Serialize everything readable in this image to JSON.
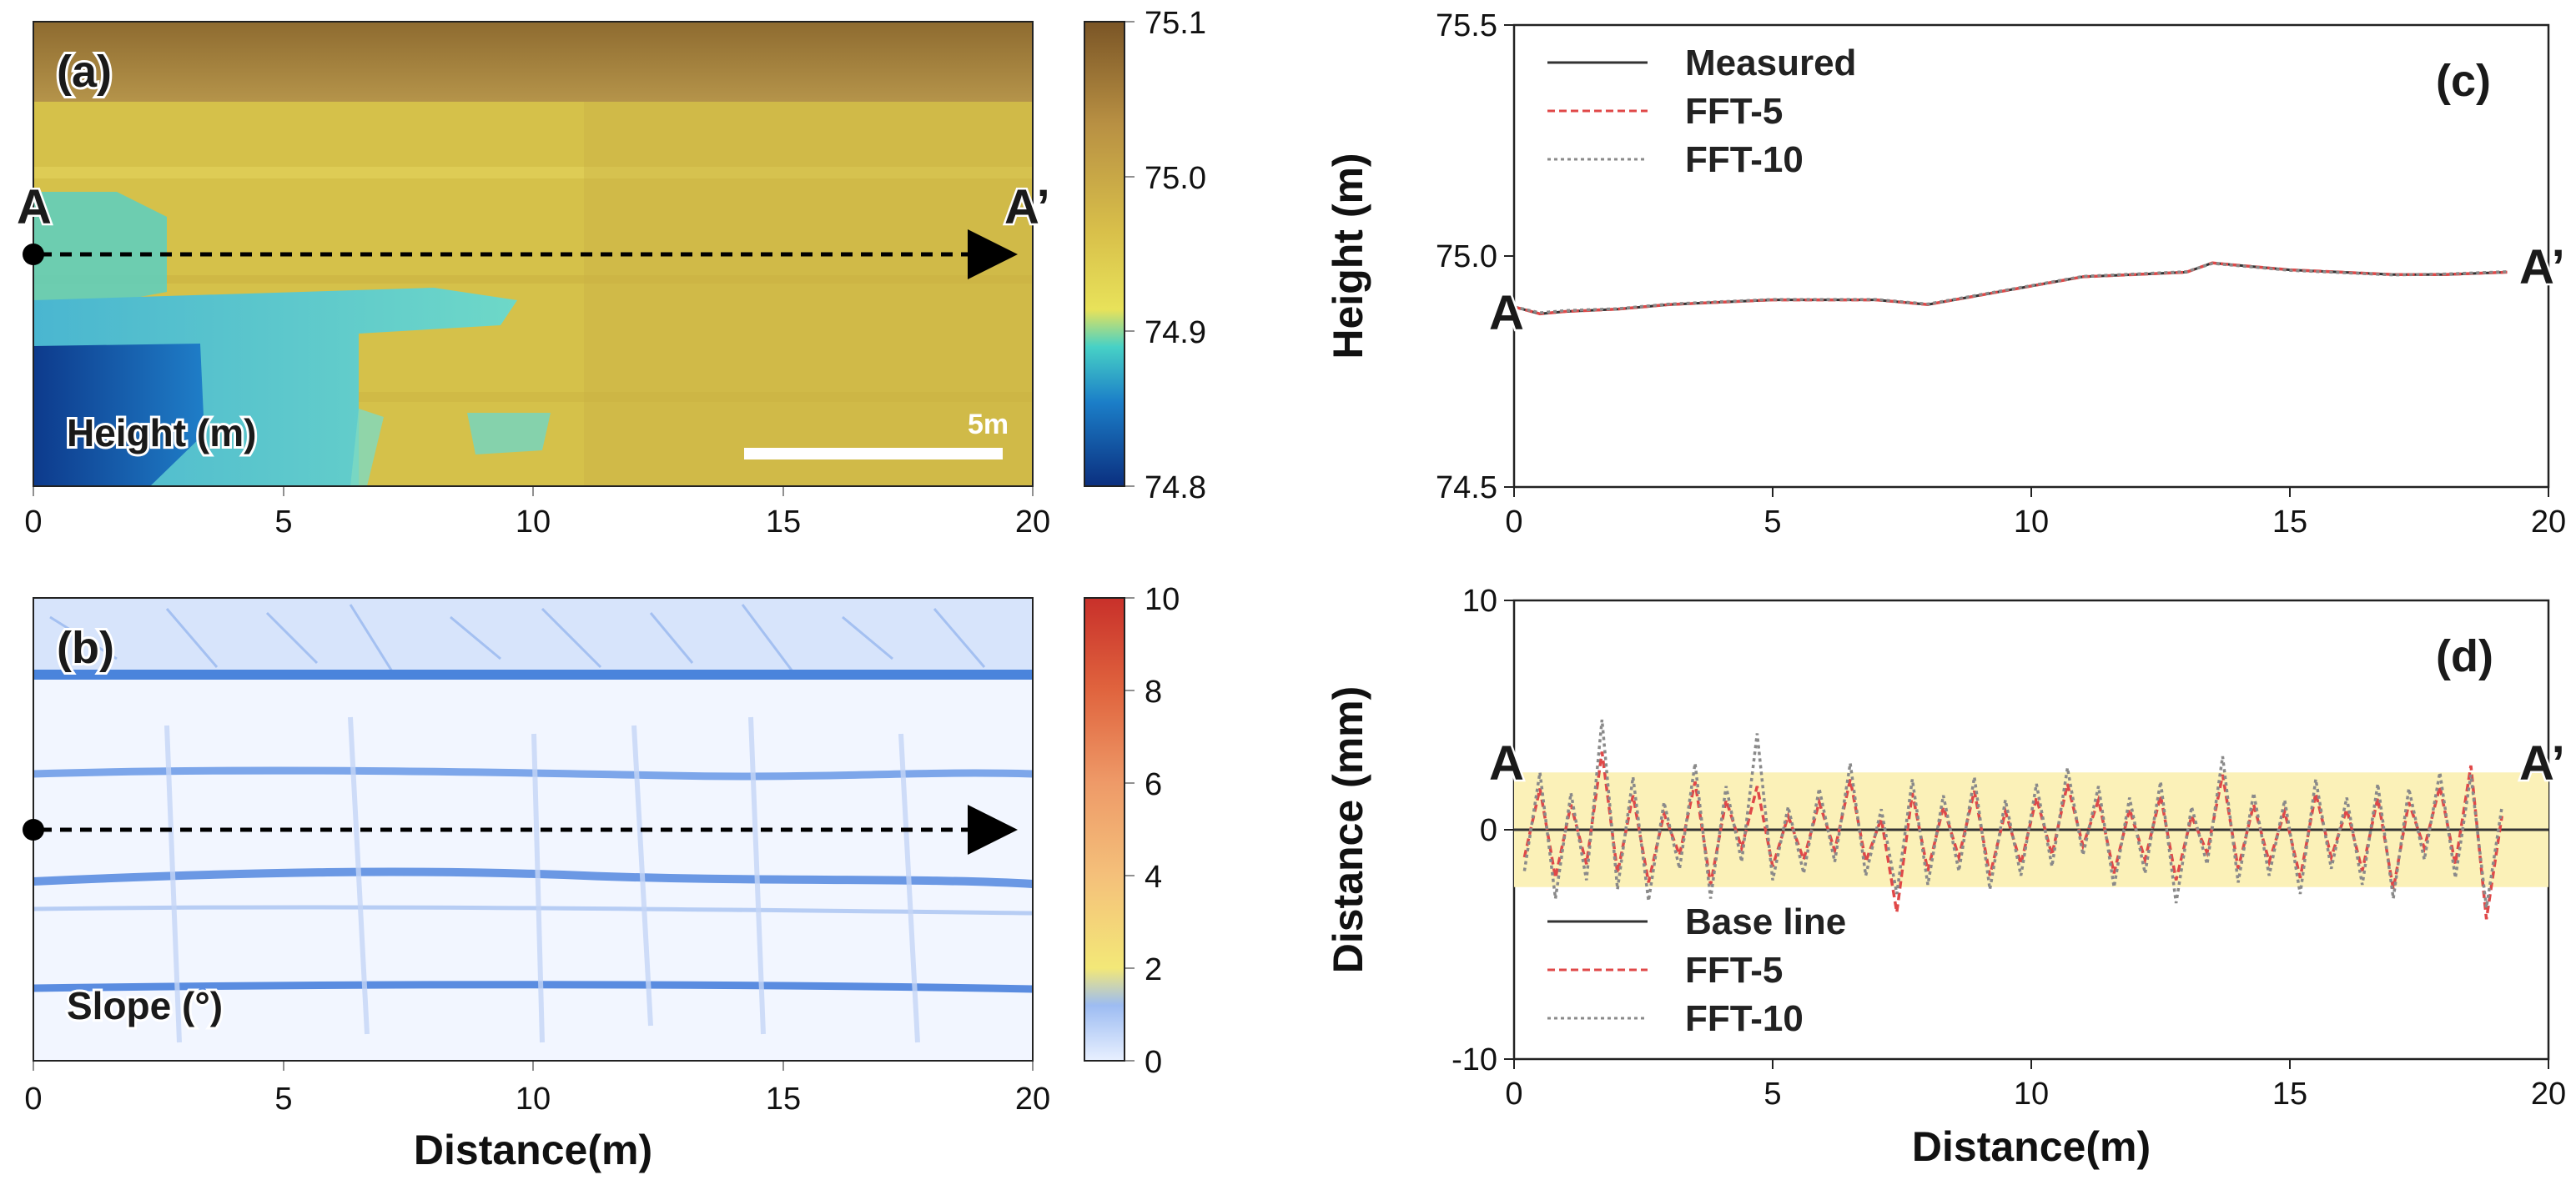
{
  "panels": {
    "a": {
      "label": "(a)",
      "title": "Height (m)",
      "x_ticks": [
        "0",
        "5",
        "10",
        "15",
        "20"
      ],
      "colorbar_ticks": [
        "75.1",
        "75.0",
        "74.9",
        "74.8"
      ],
      "colorbar_range": [
        74.8,
        75.1
      ],
      "scale_bar": "5m",
      "start_marker": "A",
      "end_marker": "A’",
      "colors": {
        "high": "#8a6a2e",
        "mid": "#d8c24a",
        "low": "#0a3a8a",
        "cyan": "#5ad0c0"
      }
    },
    "b": {
      "label": "(b)",
      "title": "Slope (°)",
      "x_ticks": [
        "0",
        "5",
        "10",
        "15",
        "20"
      ],
      "xlabel": "Distance(m)",
      "colorbar_ticks": [
        "10",
        "8",
        "6",
        "4",
        "2",
        "0"
      ],
      "colorbar_range": [
        0,
        10
      ],
      "colors": {
        "low": "#e8f0ff",
        "band": "#3a78d8",
        "high": "#d8402a"
      }
    },
    "c": {
      "label": "(c)",
      "start_marker": "A",
      "end_marker": "A’"
    },
    "d": {
      "label": "(d)",
      "start_marker": "A",
      "end_marker": "A’"
    }
  },
  "chart_data": [
    {
      "type": "line",
      "panel": "c",
      "title": "",
      "xlabel": "",
      "ylabel": "Height (m)",
      "xlim": [
        0,
        20
      ],
      "ylim": [
        74.5,
        75.5
      ],
      "x_ticks": [
        0,
        5,
        10,
        15,
        20
      ],
      "y_ticks": [
        74.5,
        75.0,
        75.5
      ],
      "x_tick_labels": [
        "0",
        "5",
        "10",
        "15",
        "20"
      ],
      "y_tick_labels": [
        "74.5",
        "75.0",
        "75.5"
      ],
      "legend_position": "top-left",
      "series": [
        {
          "name": "Measured",
          "color": "#333333",
          "style": "solid",
          "x": [
            0,
            0.5,
            1,
            2,
            3,
            4,
            5,
            6,
            7,
            8,
            9,
            10,
            11,
            12,
            13,
            13.5,
            14,
            15,
            16,
            17,
            18,
            19.2
          ],
          "y": [
            74.89,
            74.875,
            74.88,
            74.885,
            74.895,
            74.9,
            74.905,
            74.905,
            74.905,
            74.895,
            74.915,
            74.935,
            74.955,
            74.96,
            74.965,
            74.985,
            74.98,
            74.97,
            74.965,
            74.96,
            74.96,
            74.965
          ]
        },
        {
          "name": "FFT-5",
          "color": "#e04848",
          "style": "dashed",
          "x": [
            0,
            0.5,
            1,
            2,
            3,
            4,
            5,
            6,
            7,
            8,
            9,
            10,
            11,
            12,
            13,
            13.5,
            14,
            15,
            16,
            17,
            18,
            19.2
          ],
          "y": [
            74.89,
            74.875,
            74.88,
            74.885,
            74.895,
            74.9,
            74.905,
            74.905,
            74.905,
            74.895,
            74.915,
            74.935,
            74.955,
            74.96,
            74.965,
            74.985,
            74.98,
            74.97,
            74.965,
            74.96,
            74.96,
            74.965
          ]
        },
        {
          "name": "FFT-10",
          "color": "#8a8a8a",
          "style": "dotted",
          "x": [
            0,
            0.5,
            1,
            2,
            3,
            4,
            5,
            6,
            7,
            8,
            9,
            10,
            11,
            12,
            13,
            13.5,
            14,
            15,
            16,
            17,
            18,
            19.2
          ],
          "y": [
            74.89,
            74.877,
            74.882,
            74.886,
            74.896,
            74.901,
            74.906,
            74.906,
            74.906,
            74.896,
            74.916,
            74.936,
            74.956,
            74.961,
            74.966,
            74.984,
            74.979,
            74.969,
            74.964,
            74.959,
            74.961,
            74.966
          ]
        }
      ]
    },
    {
      "type": "line",
      "panel": "d",
      "title": "",
      "xlabel": "Distance(m)",
      "ylabel": "Distance (mm)",
      "xlim": [
        0,
        20
      ],
      "ylim": [
        -10,
        10
      ],
      "x_ticks": [
        0,
        5,
        10,
        15,
        20
      ],
      "y_ticks": [
        -10,
        0,
        10
      ],
      "x_tick_labels": [
        "0",
        "5",
        "10",
        "15",
        "20"
      ],
      "y_tick_labels": [
        "-10",
        "0",
        "10"
      ],
      "legend_position": "bottom-left",
      "band": {
        "from": -2.5,
        "to": 2.5,
        "color": "#fbf1b8"
      },
      "series": [
        {
          "name": "Base line",
          "color": "#333333",
          "style": "solid",
          "x": [
            0,
            20
          ],
          "y": [
            0,
            0
          ]
        },
        {
          "name": "FFT-5",
          "color": "#e04848",
          "style": "dashed",
          "x": [
            0.2,
            0.5,
            0.8,
            1.1,
            1.4,
            1.7,
            2.0,
            2.3,
            2.6,
            2.9,
            3.2,
            3.5,
            3.8,
            4.1,
            4.4,
            4.7,
            5.0,
            5.3,
            5.6,
            5.9,
            6.2,
            6.5,
            6.8,
            7.1,
            7.4,
            7.7,
            8.0,
            8.3,
            8.6,
            8.9,
            9.2,
            9.5,
            9.8,
            10.1,
            10.4,
            10.7,
            11.0,
            11.3,
            11.6,
            11.9,
            12.2,
            12.5,
            12.8,
            13.1,
            13.4,
            13.7,
            14.0,
            14.3,
            14.6,
            14.9,
            15.2,
            15.5,
            15.8,
            16.1,
            16.4,
            16.7,
            17.0,
            17.3,
            17.6,
            17.9,
            18.2,
            18.5,
            18.8,
            19.1
          ],
          "y": [
            -1.2,
            1.8,
            -2.1,
            1.1,
            -1.5,
            3.4,
            -1.9,
            1.5,
            -2.3,
            0.7,
            -1.1,
            2.1,
            -2.4,
            1.3,
            -0.8,
            1.9,
            -1.6,
            0.6,
            -1.3,
            1.2,
            -0.9,
            2.2,
            -1.4,
            0.5,
            -3.6,
            1.6,
            -1.8,
            1.0,
            -1.2,
            1.7,
            -2.0,
            0.8,
            -1.5,
            1.4,
            -1.1,
            2.0,
            -0.7,
            1.3,
            -1.9,
            0.9,
            -1.3,
            1.5,
            -2.2,
            0.6,
            -1.0,
            2.4,
            -1.7,
            1.1,
            -1.4,
            0.8,
            -2.1,
            1.6,
            -1.2,
            0.9,
            -1.8,
            1.4,
            -2.6,
            1.2,
            -0.8,
            1.9,
            -1.5,
            2.8,
            -3.9,
            0.6
          ]
        },
        {
          "name": "FFT-10",
          "color": "#8a8a8a",
          "style": "dotted",
          "x": [
            0.2,
            0.5,
            0.8,
            1.1,
            1.4,
            1.7,
            2.0,
            2.3,
            2.6,
            2.9,
            3.2,
            3.5,
            3.8,
            4.1,
            4.4,
            4.7,
            5.0,
            5.3,
            5.6,
            5.9,
            6.2,
            6.5,
            6.8,
            7.1,
            7.4,
            7.7,
            8.0,
            8.3,
            8.6,
            8.9,
            9.2,
            9.5,
            9.8,
            10.1,
            10.4,
            10.7,
            11.0,
            11.3,
            11.6,
            11.9,
            12.2,
            12.5,
            12.8,
            13.1,
            13.4,
            13.7,
            14.0,
            14.3,
            14.6,
            14.9,
            15.2,
            15.5,
            15.8,
            16.1,
            16.4,
            16.7,
            17.0,
            17.3,
            17.6,
            17.9,
            18.2,
            18.5,
            18.8,
            19.1
          ],
          "y": [
            -1.8,
            2.5,
            -3.0,
            1.6,
            -2.2,
            4.8,
            -2.6,
            2.3,
            -3.1,
            1.2,
            -1.7,
            2.9,
            -3.0,
            1.9,
            -1.4,
            4.2,
            -2.2,
            1.0,
            -1.9,
            1.8,
            -1.4,
            2.9,
            -2.0,
            0.9,
            -2.8,
            2.2,
            -2.4,
            1.5,
            -1.8,
            2.3,
            -2.6,
            1.3,
            -2.0,
            2.0,
            -1.6,
            2.7,
            -1.1,
            1.9,
            -2.5,
            1.4,
            -1.9,
            2.1,
            -3.2,
            1.0,
            -1.5,
            3.2,
            -2.3,
            1.6,
            -2.0,
            1.3,
            -2.8,
            2.2,
            -1.7,
            1.4,
            -2.4,
            2.0,
            -3.0,
            1.8,
            -1.3,
            2.5,
            -2.1,
            2.4,
            -3.4,
            1.0
          ]
        }
      ]
    }
  ]
}
